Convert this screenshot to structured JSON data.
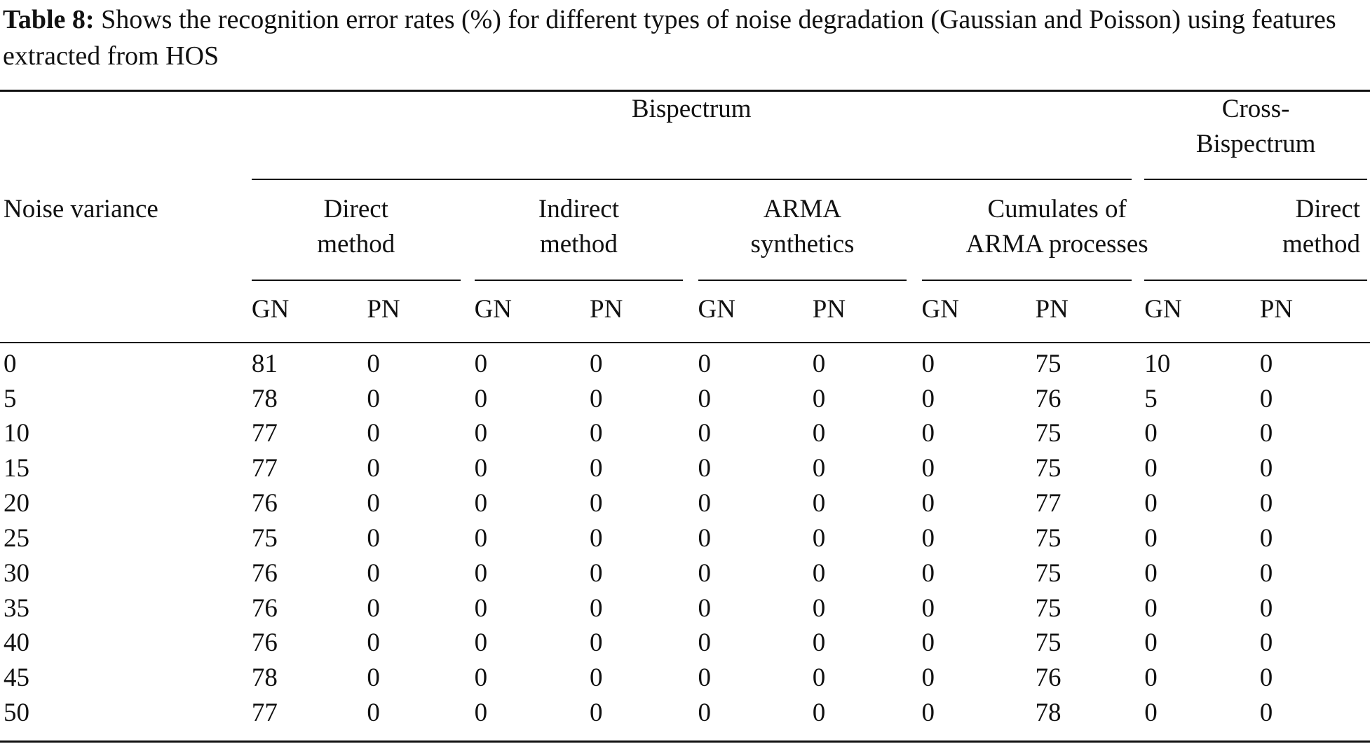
{
  "caption": {
    "label": "Table 8:",
    "text": " Shows the recognition error rates (%) for different types of noise degradation (Gaussian and Poisson) using features extracted from HOS"
  },
  "table": {
    "row_header": "Noise variance",
    "groups": [
      {
        "label": "Bispectrum"
      },
      {
        "label": "Cross-\nBispectrum"
      }
    ],
    "methods": [
      {
        "label": "Direct\nmethod"
      },
      {
        "label": "Indirect\nmethod"
      },
      {
        "label": "ARMA\nsynthetics"
      },
      {
        "label": "Cumulates of\nARMA processes"
      },
      {
        "label": "Direct\nmethod"
      }
    ],
    "subcolumns": [
      "GN",
      "PN",
      "GN",
      "PN",
      "GN",
      "PN",
      "GN",
      "PN",
      "GN",
      "PN"
    ],
    "rows": [
      [
        "0",
        "81",
        "0",
        "0",
        "0",
        "0",
        "0",
        "0",
        "75",
        "10",
        "0"
      ],
      [
        "5",
        "78",
        "0",
        "0",
        "0",
        "0",
        "0",
        "0",
        "76",
        "5",
        "0"
      ],
      [
        "10",
        "77",
        "0",
        "0",
        "0",
        "0",
        "0",
        "0",
        "75",
        "0",
        "0"
      ],
      [
        "15",
        "77",
        "0",
        "0",
        "0",
        "0",
        "0",
        "0",
        "75",
        "0",
        "0"
      ],
      [
        "20",
        "76",
        "0",
        "0",
        "0",
        "0",
        "0",
        "0",
        "77",
        "0",
        "0"
      ],
      [
        "25",
        "75",
        "0",
        "0",
        "0",
        "0",
        "0",
        "0",
        "75",
        "0",
        "0"
      ],
      [
        "30",
        "76",
        "0",
        "0",
        "0",
        "0",
        "0",
        "0",
        "75",
        "0",
        "0"
      ],
      [
        "35",
        "76",
        "0",
        "0",
        "0",
        "0",
        "0",
        "0",
        "75",
        "0",
        "0"
      ],
      [
        "40",
        "76",
        "0",
        "0",
        "0",
        "0",
        "0",
        "0",
        "75",
        "0",
        "0"
      ],
      [
        "45",
        "78",
        "0",
        "0",
        "0",
        "0",
        "0",
        "0",
        "76",
        "0",
        "0"
      ],
      [
        "50",
        "77",
        "0",
        "0",
        "0",
        "0",
        "0",
        "0",
        "78",
        "0",
        "0"
      ]
    ]
  }
}
